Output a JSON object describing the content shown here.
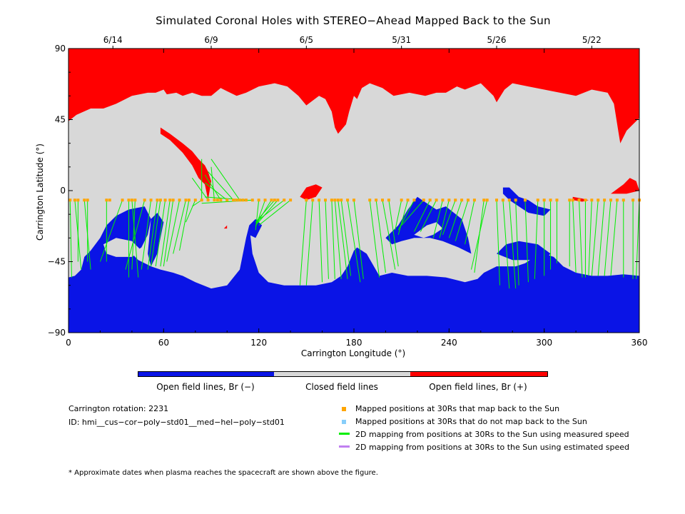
{
  "chart_data": {
    "type": "map",
    "title": "Simulated Coronal Holes with STEREO−Ahead Mapped Back to the Sun",
    "xlabel": "Carrington Longitude (°)",
    "ylabel": "Carrington Latitude (°)",
    "xlim": [
      0,
      360
    ],
    "ylim": [
      -90,
      90
    ],
    "xticks": [
      "0",
      "60",
      "120",
      "180",
      "240",
      "300",
      "360"
    ],
    "xtick_values": [
      0,
      60,
      120,
      180,
      240,
      300,
      360
    ],
    "yticks": [
      "90",
      "45",
      "0",
      "−45",
      "−90"
    ],
    "ytick_values": [
      90,
      45,
      0,
      -45,
      -90
    ],
    "top_dates": [
      {
        "label": "6/14",
        "lon": 28
      },
      {
        "label": "6/9",
        "lon": 90
      },
      {
        "label": "6/5",
        "lon": 150
      },
      {
        "label": "5/31",
        "lon": 210
      },
      {
        "label": "5/26",
        "lon": 270
      },
      {
        "label": "5/22",
        "lon": 330
      }
    ],
    "colors": {
      "open_negative": "#0a14e6",
      "closed": "#d8d8d8",
      "open_positive": "#ff0000",
      "mapped": "#ffa500",
      "unmapped": "#87cefa",
      "measured": "#00ee00",
      "estimated": "#c080f0"
    },
    "colorbar": [
      {
        "label": "Open field lines, Br (−)",
        "color": "#0a14e6"
      },
      {
        "label": "Closed field lines",
        "color": "#d8d8d8"
      },
      {
        "label": "Open field lines, Br (+)",
        "color": "#ff0000"
      }
    ],
    "mapped_points_lat": -6,
    "mapped_points_lon": [
      1,
      4,
      6,
      10,
      12,
      24,
      26,
      34,
      38,
      40,
      42,
      48,
      52,
      56,
      58,
      61,
      64,
      66,
      70,
      74,
      76,
      80,
      84,
      88,
      92,
      94,
      96,
      100,
      104,
      106,
      108,
      110,
      112,
      116,
      120,
      124,
      128,
      130,
      132,
      136,
      140,
      150,
      154,
      158,
      162,
      166,
      168,
      170,
      172,
      176,
      180,
      190,
      194,
      198,
      202,
      210,
      214,
      218,
      224,
      228,
      232,
      236,
      240,
      244,
      248,
      252,
      256,
      262,
      264,
      270,
      274,
      278,
      282,
      288,
      296,
      300,
      304,
      308,
      316,
      318,
      322,
      326,
      330,
      334,
      338,
      342,
      346,
      350,
      356,
      360
    ],
    "mappings_measured": [
      [
        1,
        -6,
        2,
        -55
      ],
      [
        4,
        -6,
        8,
        -50
      ],
      [
        6,
        -6,
        6,
        -45
      ],
      [
        10,
        -6,
        14,
        -50
      ],
      [
        12,
        -6,
        12,
        -45
      ],
      [
        24,
        -6,
        24,
        -45
      ],
      [
        34,
        -6,
        20,
        -45
      ],
      [
        38,
        -6,
        38,
        -55
      ],
      [
        40,
        -6,
        44,
        -55
      ],
      [
        42,
        -6,
        40,
        -50
      ],
      [
        48,
        -6,
        36,
        -50
      ],
      [
        52,
        -6,
        46,
        -50
      ],
      [
        56,
        -6,
        50,
        -50
      ],
      [
        58,
        -6,
        52,
        -48
      ],
      [
        61,
        -6,
        55,
        -48
      ],
      [
        64,
        -6,
        58,
        -48
      ],
      [
        66,
        -6,
        60,
        -48
      ],
      [
        70,
        -6,
        62,
        -45
      ],
      [
        74,
        -6,
        66,
        -40
      ],
      [
        76,
        -6,
        70,
        -38
      ],
      [
        80,
        -6,
        74,
        -20
      ],
      [
        84,
        -6,
        78,
        -10
      ],
      [
        88,
        -6,
        78,
        8
      ],
      [
        84,
        -6,
        84,
        20
      ],
      [
        92,
        -6,
        90,
        15
      ],
      [
        96,
        -6,
        86,
        10
      ],
      [
        100,
        -6,
        86,
        5
      ],
      [
        104,
        -6,
        88,
        12
      ],
      [
        108,
        -6,
        90,
        20
      ],
      [
        116,
        -6,
        84,
        -8
      ],
      [
        112,
        -6,
        86,
        -4
      ],
      [
        120,
        -6,
        118,
        -25
      ],
      [
        124,
        -6,
        118,
        -23
      ],
      [
        128,
        -6,
        118,
        -22
      ],
      [
        130,
        -6,
        118,
        -20
      ],
      [
        132,
        -6,
        118,
        -22
      ],
      [
        136,
        -6,
        118,
        -20
      ],
      [
        140,
        -6,
        120,
        -22
      ],
      [
        150,
        -6,
        146,
        -60
      ],
      [
        154,
        -6,
        150,
        -60
      ],
      [
        158,
        -6,
        160,
        -58
      ],
      [
        162,
        -6,
        164,
        -56
      ],
      [
        166,
        -6,
        168,
        -56
      ],
      [
        168,
        -6,
        172,
        -56
      ],
      [
        170,
        -6,
        176,
        -56
      ],
      [
        172,
        -6,
        178,
        -54
      ],
      [
        176,
        -6,
        184,
        -58
      ],
      [
        180,
        -6,
        186,
        -56
      ],
      [
        190,
        -6,
        196,
        -55
      ],
      [
        194,
        -6,
        200,
        -52
      ],
      [
        198,
        -6,
        206,
        -50
      ],
      [
        202,
        -6,
        208,
        -48
      ],
      [
        210,
        -6,
        206,
        -25
      ],
      [
        214,
        -6,
        208,
        -28
      ],
      [
        218,
        -6,
        208,
        -25
      ],
      [
        224,
        -6,
        210,
        -22
      ],
      [
        228,
        -6,
        218,
        -26
      ],
      [
        232,
        -6,
        222,
        -26
      ],
      [
        236,
        -6,
        230,
        -30
      ],
      [
        240,
        -6,
        234,
        -30
      ],
      [
        244,
        -6,
        236,
        -28
      ],
      [
        248,
        -6,
        240,
        -30
      ],
      [
        252,
        -6,
        244,
        -32
      ],
      [
        256,
        -6,
        250,
        -34
      ],
      [
        262,
        -6,
        256,
        -52
      ],
      [
        264,
        -6,
        254,
        -50
      ],
      [
        270,
        -6,
        272,
        -60
      ],
      [
        274,
        -6,
        278,
        -62
      ],
      [
        278,
        -6,
        282,
        -62
      ],
      [
        282,
        -6,
        284,
        -60
      ],
      [
        288,
        -6,
        290,
        -58
      ],
      [
        296,
        -6,
        294,
        -56
      ],
      [
        300,
        -6,
        300,
        -54
      ],
      [
        304,
        -6,
        304,
        -50
      ],
      [
        308,
        -6,
        308,
        -46
      ],
      [
        316,
        -6,
        316,
        -48
      ],
      [
        318,
        -6,
        320,
        -52
      ],
      [
        322,
        -6,
        324,
        -55
      ],
      [
        326,
        -6,
        326,
        -55
      ],
      [
        330,
        -6,
        328,
        -54
      ],
      [
        334,
        -6,
        330,
        -54
      ],
      [
        338,
        -6,
        334,
        -54
      ],
      [
        342,
        -6,
        338,
        -54
      ],
      [
        346,
        -6,
        342,
        -54
      ],
      [
        350,
        -6,
        350,
        -55
      ],
      [
        356,
        -6,
        356,
        -56
      ],
      [
        360,
        -6,
        358,
        -56
      ]
    ],
    "text": {
      "rotation": "Carrington rotation: 2231",
      "id": "ID: hmi__cus−cor−poly−std01__med−hel−poly−std01",
      "footnote": "* Approximate dates when plasma reaches the spacecraft are shown above the figure."
    },
    "legend": [
      {
        "kind": "square",
        "color": "#ffa500",
        "label": "Mapped positions at 30Rs that map back to the Sun"
      },
      {
        "kind": "square",
        "color": "#87cefa",
        "label": "Mapped positions at 30Rs that do not map back to the Sun"
      },
      {
        "kind": "line",
        "color": "#00ee00",
        "label": "2D mapping from positions at 30Rs to the Sun using measured speed"
      },
      {
        "kind": "line",
        "color": "#c080f0",
        "label": "2D mapping from positions at 30Rs to the Sun using estimated speed"
      }
    ]
  }
}
